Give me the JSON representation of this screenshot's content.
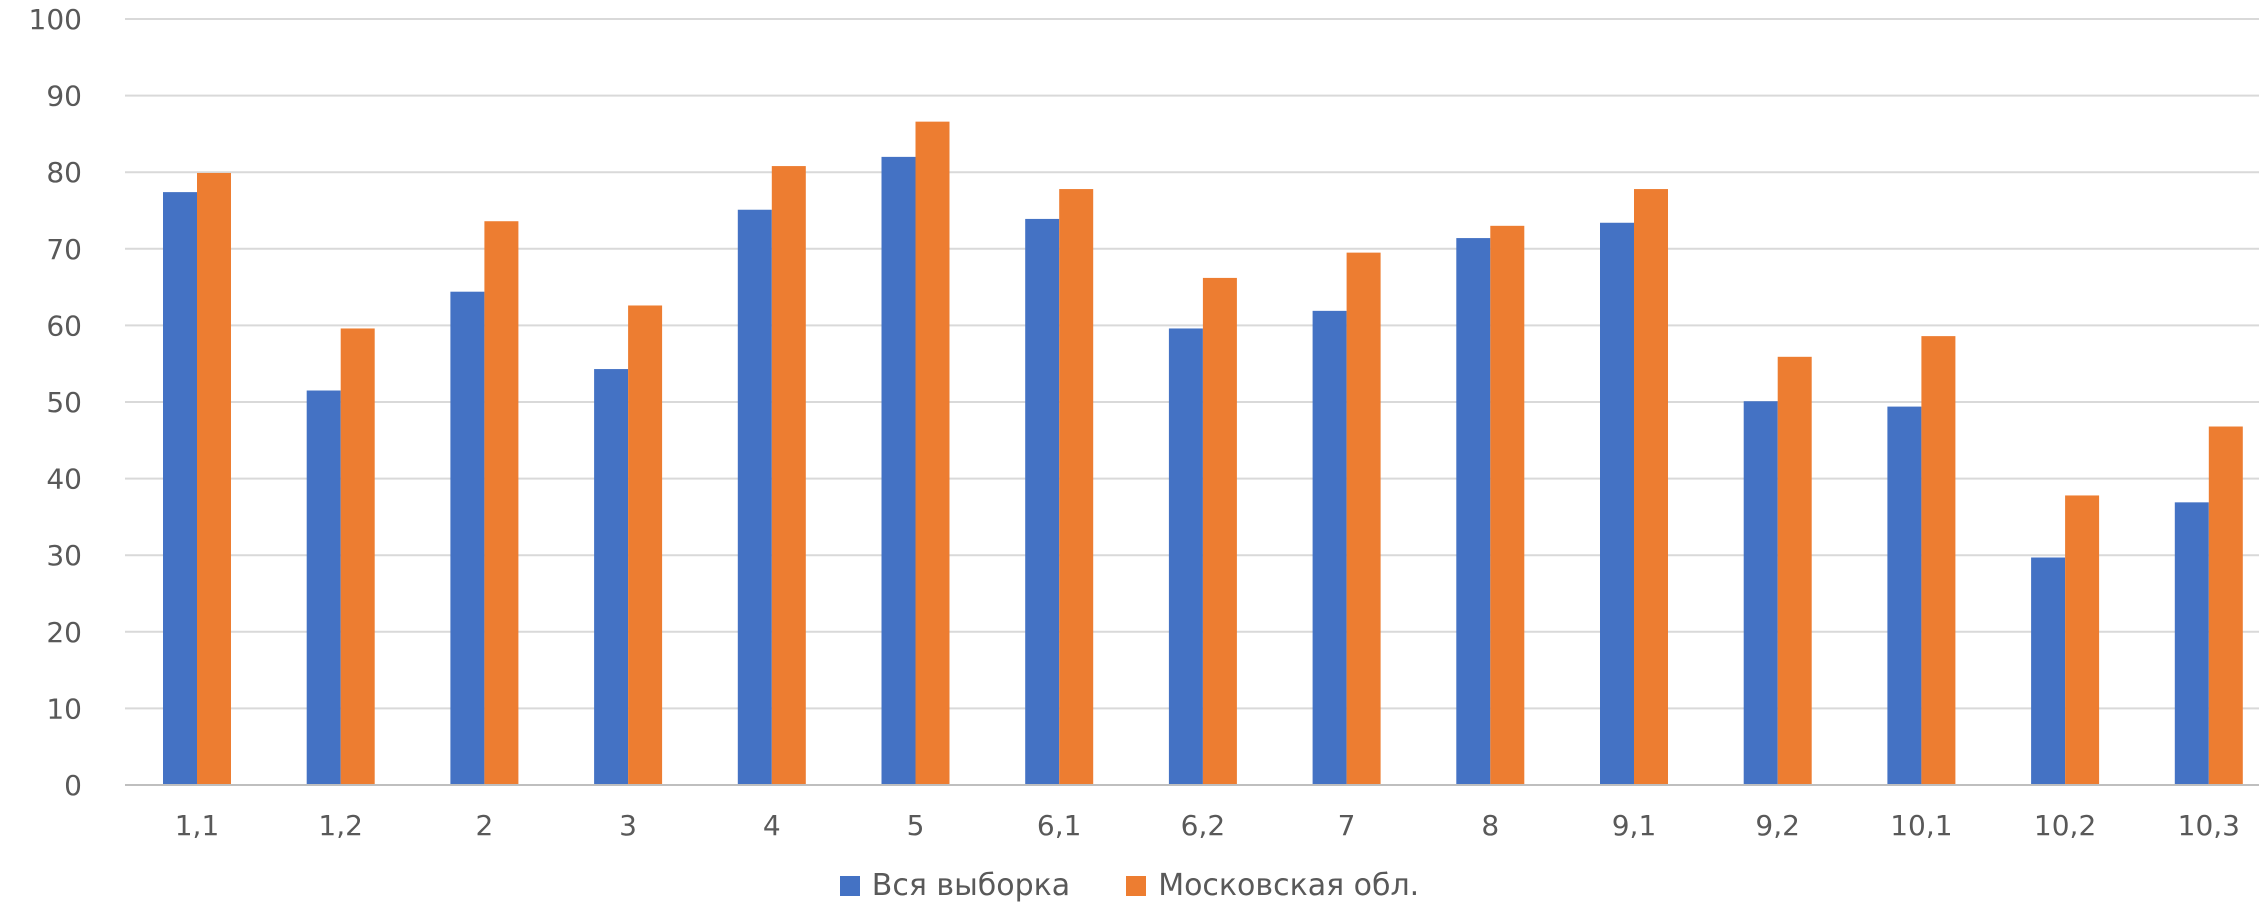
{
  "chart_data": {
    "type": "bar",
    "categories": [
      "1,1",
      "1,2",
      "2",
      "3",
      "4",
      "5",
      "6,1",
      "6,2",
      "7",
      "8",
      "9,1",
      "9,2",
      "10,1",
      "10,2",
      "10,3"
    ],
    "series": [
      {
        "name": "Вся выборка",
        "color": "#4472c4",
        "values": [
          77.4,
          51.5,
          64.4,
          54.3,
          75.1,
          82.0,
          73.9,
          59.6,
          61.9,
          71.4,
          73.4,
          50.1,
          49.4,
          29.7,
          36.9
        ]
      },
      {
        "name": "Московская обл.",
        "color": "#ed7d31",
        "values": [
          79.9,
          59.6,
          73.6,
          62.6,
          80.8,
          86.6,
          77.8,
          66.2,
          69.5,
          73.0,
          77.8,
          55.9,
          58.6,
          37.8,
          46.8
        ]
      }
    ],
    "ylim": [
      0,
      100
    ],
    "yticks": [
      0,
      10,
      20,
      30,
      40,
      50,
      60,
      70,
      80,
      90,
      100
    ],
    "grid": true,
    "legend_position": "bottom"
  }
}
